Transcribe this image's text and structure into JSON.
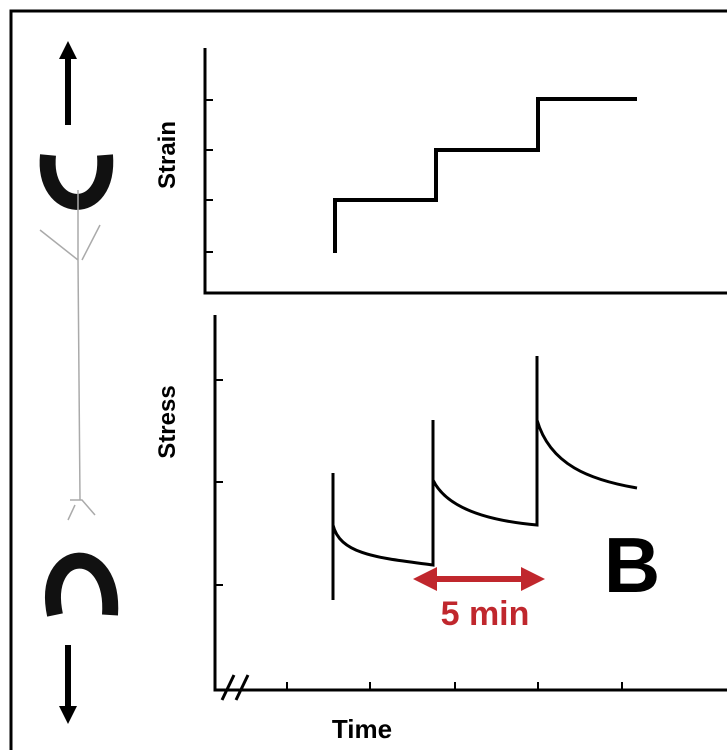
{
  "panel_label": "B",
  "top_plot": {
    "y_label": "Strain"
  },
  "bottom_plot": {
    "y_label": "Stress",
    "x_label": "Time",
    "annotation": "5 min"
  }
}
